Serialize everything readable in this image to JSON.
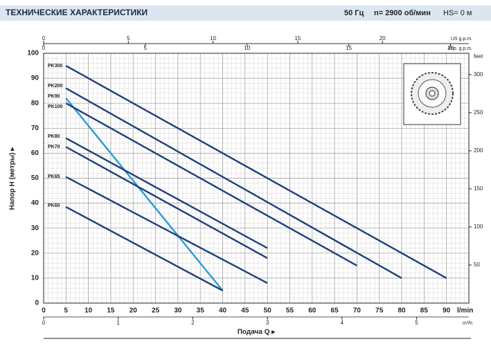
{
  "chart_data": {
    "type": "line",
    "title": "ТЕХНИЧЕСКИЕ ХАРАКТЕРИСТИКИ",
    "header_notes": [
      "50 Гц",
      "n= 2900 об/мин",
      "HS= 0 м"
    ],
    "xlabel": "l/min",
    "ylabel": "Напор H (метры) ▸",
    "x_title": "Подача Q ▸",
    "xlim": [
      0,
      95
    ],
    "xticks": [
      0,
      5,
      10,
      15,
      20,
      25,
      30,
      35,
      40,
      45,
      50,
      55,
      60,
      65,
      70,
      75,
      80,
      85,
      90
    ],
    "ylim": [
      0,
      100
    ],
    "yticks": [
      0,
      10,
      20,
      30,
      40,
      50,
      60,
      70,
      80,
      90,
      100
    ],
    "grid": true,
    "y2": {
      "label": "feet",
      "lim": [
        0,
        328
      ],
      "ticks": [
        50,
        100,
        150,
        200,
        250,
        300
      ]
    },
    "x_us": {
      "label": "US g.p.m.",
      "lim": [
        0,
        25.1
      ],
      "ticks": [
        0,
        5,
        10,
        15,
        20
      ]
    },
    "x_imp": {
      "label": "Imp. g.p.m.",
      "lim": [
        0,
        20.9
      ],
      "ticks": [
        0,
        5,
        10,
        15,
        20
      ]
    },
    "x_m3h": {
      "label": "m³/h",
      "lim": [
        0,
        5.7
      ],
      "ticks": [
        0,
        1,
        2,
        3,
        4,
        5
      ]
    },
    "series": [
      {
        "name": "PK300",
        "color": "#1d3f7a",
        "x": [
          5,
          90
        ],
        "values": [
          95,
          10
        ]
      },
      {
        "name": "PK200",
        "color": "#1d3f7a",
        "x": [
          5,
          80
        ],
        "values": [
          86,
          10
        ]
      },
      {
        "name": "PK90",
        "color": "#2a9ad6",
        "x": [
          5,
          40
        ],
        "values": [
          82,
          5
        ]
      },
      {
        "name": "PK100",
        "color": "#1d3f7a",
        "x": [
          5,
          70
        ],
        "values": [
          80,
          15
        ]
      },
      {
        "name": "PK80",
        "color": "#1d3f7a",
        "x": [
          5,
          50
        ],
        "values": [
          66,
          22
        ]
      },
      {
        "name": "PK70",
        "color": "#1d3f7a",
        "x": [
          5,
          50
        ],
        "values": [
          62.5,
          18
        ]
      },
      {
        "name": "PK65",
        "color": "#1d3f7a",
        "x": [
          5,
          50
        ],
        "values": [
          50.5,
          8
        ]
      },
      {
        "name": "PK60",
        "color": "#1d3f7a",
        "x": [
          5,
          40
        ],
        "values": [
          38.5,
          5
        ]
      }
    ]
  }
}
